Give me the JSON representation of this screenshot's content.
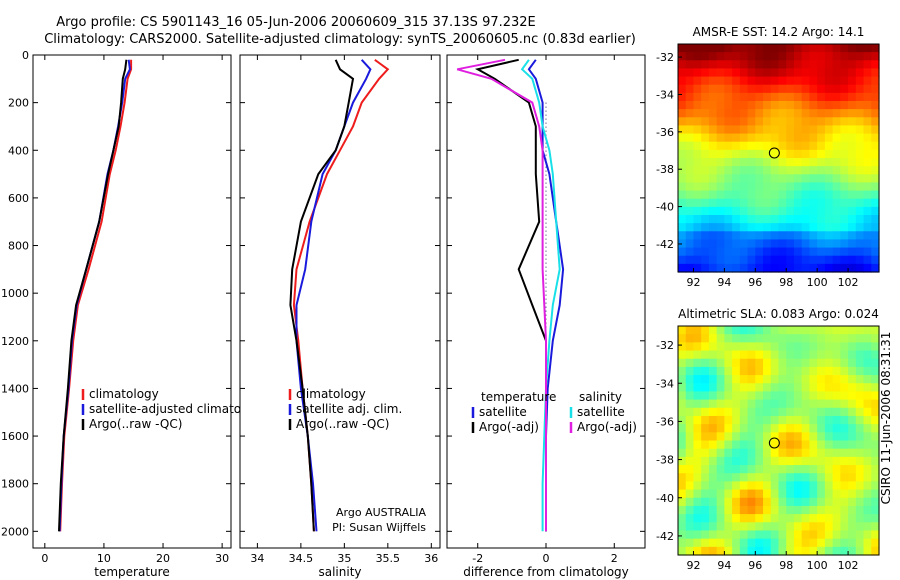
{
  "title": {
    "line1": "Argo profile: CS 5901143_16 05-Jun-2006 20060609_315 37.13S 97.232E",
    "line2": "Climatology: CARS2000. Satellite-adjusted climatology: synTS_20060605.nc (0.83d earlier)"
  },
  "side_label": "CSIRO 11-Jun-2006 08:31:31",
  "credit": {
    "line1": "Argo AUSTRALIA",
    "line2": "PI: Susan Wijffels"
  },
  "colors": {
    "red": "#ee1c1c",
    "blue": "#1a1adc",
    "black": "#000000",
    "cyan": "#19e0e8",
    "magenta": "#e020e0",
    "dotted": "#2a2a6a"
  },
  "chart_data": [
    {
      "type": "line",
      "id": "temperature",
      "xlabel": "temperature",
      "ylabel": "",
      "xlim": [
        -2,
        31.5
      ],
      "ylim": [
        2070,
        0
      ],
      "xticks": [
        0,
        10,
        20,
        30
      ],
      "yticks": [
        0,
        200,
        400,
        600,
        800,
        1000,
        1200,
        1400,
        1600,
        1800,
        2000
      ],
      "legend": [
        "climatology",
        "satellite-adjusted climatolog",
        "Argo(..raw -QC)"
      ],
      "series": [
        {
          "name": "climatology",
          "color": "red",
          "x": [
            14.6,
            14.6,
            14.0,
            13.5,
            12.8,
            12.0,
            11.0,
            9.6,
            7.4,
            5.6,
            4.8,
            4.1,
            3.3,
            2.9,
            2.6
          ],
          "y": [
            20,
            60,
            100,
            200,
            300,
            400,
            500,
            700,
            900,
            1050,
            1200,
            1400,
            1600,
            1800,
            2000
          ]
        },
        {
          "name": "satellite-adjusted climatolog",
          "color": "blue",
          "x": [
            14.2,
            14.4,
            13.6,
            13.1,
            12.4,
            11.6,
            10.6,
            9.2,
            7.0,
            5.4,
            4.6,
            4.0,
            3.2,
            2.8,
            2.5
          ],
          "y": [
            20,
            60,
            100,
            200,
            300,
            400,
            500,
            700,
            900,
            1050,
            1200,
            1400,
            1600,
            1800,
            2000
          ]
        },
        {
          "name": "Argo(..raw -QC)",
          "color": "black",
          "x": [
            13.8,
            13.6,
            13.2,
            12.9,
            12.5,
            11.6,
            10.7,
            9.2,
            7.0,
            5.3,
            4.5,
            3.9,
            3.2,
            2.7,
            2.4
          ],
          "y": [
            20,
            60,
            100,
            200,
            300,
            400,
            500,
            700,
            900,
            1050,
            1200,
            1400,
            1600,
            1800,
            2000
          ]
        }
      ]
    },
    {
      "type": "line",
      "id": "salinity",
      "xlabel": "salinity",
      "ylabel": "",
      "xlim": [
        33.8,
        36.1
      ],
      "ylim": [
        2070,
        0
      ],
      "xticks": [
        34,
        34.5,
        35,
        35.5,
        36
      ],
      "xtick_labels": [
        "34",
        "34.5",
        "35",
        "35.5",
        "36"
      ],
      "legend": [
        "climatology",
        "satellite adj. clim.",
        "Argo(..raw -QC)"
      ],
      "series": [
        {
          "name": "climatology",
          "color": "red",
          "x": [
            35.35,
            35.5,
            35.4,
            35.2,
            35.1,
            34.95,
            34.8,
            34.6,
            34.45,
            34.42,
            34.47,
            34.52,
            34.58,
            34.62,
            34.65
          ],
          "y": [
            20,
            60,
            100,
            200,
            300,
            400,
            500,
            700,
            900,
            1050,
            1200,
            1400,
            1600,
            1800,
            2000
          ]
        },
        {
          "name": "satellite adj. clim.",
          "color": "blue",
          "x": [
            35.2,
            35.3,
            35.25,
            35.1,
            35.0,
            34.9,
            34.75,
            34.62,
            34.55,
            34.45,
            34.45,
            34.5,
            34.58,
            34.64,
            34.68
          ],
          "y": [
            20,
            60,
            100,
            200,
            300,
            400,
            500,
            700,
            900,
            1050,
            1200,
            1400,
            1600,
            1800,
            2000
          ]
        },
        {
          "name": "Argo(..raw -QC)",
          "color": "black",
          "x": [
            34.9,
            34.95,
            35.1,
            35.05,
            35.0,
            34.9,
            34.7,
            34.5,
            34.4,
            34.38,
            34.45,
            34.52,
            34.58,
            34.62,
            34.65
          ],
          "y": [
            20,
            60,
            100,
            200,
            300,
            400,
            500,
            700,
            900,
            1050,
            1200,
            1400,
            1600,
            1800,
            2000
          ]
        }
      ]
    },
    {
      "type": "line",
      "id": "difference",
      "xlabel": "difference from climatology",
      "ylabel": "",
      "xlim": [
        -2.9,
        2.9
      ],
      "ylim": [
        2070,
        0
      ],
      "xticks": [
        -2,
        0,
        2
      ],
      "legend_groups": [
        {
          "title": "temperature",
          "entries": [
            "satellite",
            "Argo(-adj)"
          ]
        },
        {
          "title": "salinity",
          "entries": [
            "satellite",
            "Argo(-adj)"
          ]
        }
      ],
      "series": [
        {
          "name": "temperature satellite",
          "color": "blue",
          "x": [
            -0.3,
            -0.5,
            -0.3,
            -0.1,
            -0.1,
            -0.1,
            0.1,
            0.3,
            0.5,
            0.4,
            0.2,
            0.05,
            0.0,
            0.0,
            0.0
          ],
          "y": [
            20,
            60,
            100,
            200,
            300,
            400,
            500,
            700,
            900,
            1050,
            1200,
            1400,
            1600,
            1800,
            2000
          ]
        },
        {
          "name": "temperature Argo(-adj)",
          "color": "black",
          "x": [
            -0.8,
            -2.0,
            -1.5,
            -0.5,
            -0.3,
            -0.3,
            -0.3,
            -0.2,
            -0.8,
            -0.4,
            0.0,
            0.0,
            0.0,
            0.0,
            0.0
          ],
          "y": [
            20,
            60,
            100,
            200,
            300,
            400,
            500,
            700,
            900,
            1050,
            1200,
            1400,
            1600,
            1800,
            2000
          ]
        },
        {
          "name": "salinity satellite",
          "color": "cyan",
          "x": [
            -0.5,
            -0.7,
            -0.4,
            -0.2,
            -0.1,
            0.1,
            0.2,
            0.3,
            0.4,
            0.2,
            0.1,
            0.0,
            -0.05,
            -0.1,
            -0.1
          ],
          "y": [
            20,
            60,
            100,
            200,
            300,
            400,
            500,
            700,
            900,
            1050,
            1200,
            1400,
            1600,
            1800,
            2000
          ]
        },
        {
          "name": "salinity Argo(-adj)",
          "color": "magenta",
          "x": [
            -1.2,
            -2.6,
            -1.6,
            -0.4,
            -0.2,
            -0.1,
            -0.1,
            -0.1,
            -0.1,
            -0.05,
            0.0,
            0.0,
            0.0,
            0.0,
            0.0
          ],
          "y": [
            20,
            60,
            100,
            200,
            300,
            400,
            500,
            700,
            900,
            1050,
            1200,
            1400,
            1600,
            1800,
            2000
          ]
        }
      ]
    },
    {
      "type": "heatmap",
      "id": "amsre-sst",
      "title": "AMSR-E SST: 14.2 Argo: 14.1",
      "xlim": [
        91,
        104
      ],
      "ylim": [
        -43.5,
        -31.3
      ],
      "xticks": [
        92,
        94,
        96,
        98,
        100,
        102
      ],
      "yticks": [
        -32,
        -34,
        -36,
        -38,
        -40,
        -42
      ],
      "float_position": {
        "lon": 97.232,
        "lat": -37.13
      },
      "colormap": "jet",
      "value_range": [
        8,
        22
      ]
    },
    {
      "type": "heatmap",
      "id": "altimetric-sla",
      "title": "Altimetric SLA: 0.083 Argo: 0.024",
      "xlim": [
        91,
        104
      ],
      "ylim": [
        -43,
        -31
      ],
      "xticks": [
        92,
        94,
        96,
        98,
        100,
        102
      ],
      "yticks": [
        -32,
        -34,
        -36,
        -38,
        -40,
        -42
      ],
      "float_position": {
        "lon": 97.232,
        "lat": -37.13
      },
      "colormap": "jet",
      "value_range": [
        -0.5,
        0.5
      ]
    }
  ]
}
